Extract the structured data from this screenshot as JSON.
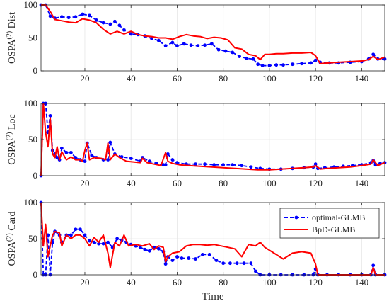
{
  "chart_data": [
    {
      "type": "line",
      "ylabel": "OSPA(2) Dist",
      "ylabel_main": "OSPA",
      "ylabel_sup": "(2)",
      "ylabel_rest": " Dist",
      "xlabel": "",
      "xlim": [
        1,
        150
      ],
      "ylim": [
        0,
        100
      ],
      "xticks": [
        20,
        40,
        60,
        80,
        100,
        120,
        140
      ],
      "yticks": [
        0,
        50,
        100
      ],
      "grid": true,
      "series": [
        {
          "name": "optimal-GLMB",
          "color": "#0000ff",
          "style": "dashed-markers",
          "x": [
            1,
            3,
            5,
            7,
            10,
            13,
            16,
            19,
            22,
            25,
            28,
            31,
            33,
            35,
            37,
            40,
            43,
            46,
            49,
            52,
            55,
            58,
            60,
            63,
            66,
            69,
            72,
            75,
            78,
            81,
            84,
            87,
            90,
            93,
            95,
            97,
            100,
            103,
            106,
            110,
            114,
            118,
            120,
            122,
            126,
            130,
            135,
            140,
            143,
            145,
            147,
            150
          ],
          "y": [
            100,
            100,
            83,
            80,
            82,
            81,
            82,
            86,
            84,
            77,
            73,
            71,
            75,
            69,
            62,
            56,
            55,
            53,
            49,
            46,
            38,
            43,
            38,
            41,
            39,
            38,
            39,
            41,
            32,
            30,
            28,
            22,
            19,
            18,
            10,
            8,
            8,
            9,
            9,
            10,
            11,
            12,
            16,
            13,
            12,
            12,
            13,
            14,
            18,
            25,
            18,
            18
          ]
        },
        {
          "name": "BpD-GLMB",
          "color": "#ff0000",
          "style": "solid",
          "x": [
            1,
            3,
            5,
            7,
            10,
            13,
            16,
            19,
            22,
            25,
            28,
            31,
            34,
            37,
            40,
            43,
            46,
            49,
            52,
            55,
            58,
            61,
            64,
            67,
            70,
            73,
            76,
            79,
            82,
            85,
            88,
            91,
            94,
            96,
            98,
            100,
            103,
            106,
            110,
            114,
            118,
            120,
            122,
            126,
            130,
            135,
            140,
            143,
            145,
            147,
            150
          ],
          "y": [
            100,
            100,
            90,
            78,
            76,
            74,
            73,
            79,
            77,
            73,
            63,
            56,
            60,
            56,
            60,
            55,
            53,
            52,
            50,
            50,
            48,
            52,
            55,
            53,
            52,
            49,
            51,
            50,
            47,
            35,
            33,
            25,
            23,
            17,
            25,
            25,
            26,
            26,
            27,
            27,
            28,
            23,
            11,
            12,
            13,
            14,
            15,
            17,
            22,
            17,
            21
          ]
        }
      ]
    },
    {
      "type": "line",
      "ylabel": "OSPA(2) Loc",
      "ylabel_main": "OSPA",
      "ylabel_sup": "(2)",
      "ylabel_rest": " Loc",
      "xlabel": "",
      "xlim": [
        1,
        150
      ],
      "ylim": [
        0,
        100
      ],
      "xticks": [
        20,
        40,
        60,
        80,
        100,
        120,
        140
      ],
      "yticks": [
        0,
        50,
        100
      ],
      "grid": true,
      "series": [
        {
          "name": "optimal-GLMB",
          "color": "#0000ff",
          "style": "dashed-markers",
          "x": [
            1,
            2,
            3,
            4,
            5,
            6,
            7,
            8,
            9,
            10,
            12,
            14,
            16,
            18,
            20,
            21,
            23,
            25,
            28,
            30,
            31,
            33,
            36,
            40,
            44,
            45,
            48,
            51,
            54,
            55,
            56,
            58,
            60,
            64,
            68,
            72,
            76,
            80,
            84,
            88,
            92,
            96,
            100,
            105,
            110,
            115,
            119,
            120,
            121,
            124,
            128,
            132,
            136,
            140,
            144,
            145,
            146,
            148,
            150
          ],
          "y": [
            0,
            100,
            100,
            60,
            83,
            35,
            30,
            25,
            22,
            38,
            32,
            32,
            25,
            22,
            20,
            45,
            28,
            25,
            22,
            22,
            46,
            30,
            26,
            24,
            20,
            25,
            20,
            17,
            15,
            15,
            30,
            22,
            18,
            16,
            16,
            16,
            15,
            15,
            15,
            14,
            12,
            10,
            9,
            9,
            10,
            11,
            12,
            16,
            10,
            11,
            12,
            13,
            14,
            15,
            18,
            21,
            15,
            17,
            18
          ]
        },
        {
          "name": "BpD-GLMB",
          "color": "#ff0000",
          "style": "solid",
          "x": [
            1,
            2,
            3,
            4,
            5,
            6,
            7,
            8,
            9,
            10,
            12,
            14,
            16,
            18,
            19,
            20,
            21,
            22,
            24,
            27,
            29,
            30,
            31,
            33,
            35,
            38,
            41,
            44,
            45,
            47,
            50,
            53,
            55,
            56,
            58,
            61,
            65,
            70,
            75,
            80,
            85,
            90,
            95,
            100,
            105,
            110,
            115,
            119,
            120,
            122,
            125,
            130,
            135,
            140,
            144,
            145,
            147,
            150
          ],
          "y": [
            0,
            100,
            60,
            40,
            80,
            30,
            25,
            40,
            22,
            33,
            22,
            26,
            22,
            22,
            20,
            35,
            45,
            22,
            25,
            24,
            22,
            45,
            22,
            30,
            25,
            20,
            19,
            18,
            24,
            18,
            16,
            14,
            32,
            20,
            17,
            15,
            14,
            13,
            12,
            11,
            10,
            9,
            8,
            8,
            9,
            10,
            11,
            12,
            14,
            9,
            10,
            11,
            12,
            14,
            16,
            22,
            14,
            18
          ]
        }
      ]
    },
    {
      "type": "line",
      "ylabel": "OSPA(2) Card",
      "ylabel_main": "OSPA",
      "ylabel_sup": "(2)",
      "ylabel_rest": " Card",
      "xlabel": "Time",
      "xlim": [
        1,
        150
      ],
      "ylim": [
        0,
        100
      ],
      "xticks": [
        20,
        40,
        60,
        80,
        100,
        120,
        140
      ],
      "yticks": [
        0,
        50,
        100
      ],
      "grid": true,
      "legend_position": "top-right",
      "series": [
        {
          "name": "optimal-GLMB",
          "color": "#0000ff",
          "style": "dashed-markers",
          "x": [
            1,
            2,
            3,
            4,
            5,
            6,
            7,
            9,
            10,
            12,
            14,
            16,
            18,
            20,
            22,
            24,
            26,
            28,
            30,
            32,
            34,
            36,
            38,
            40,
            42,
            44,
            46,
            48,
            50,
            52,
            54,
            55,
            56,
            58,
            60,
            62,
            65,
            68,
            71,
            74,
            77,
            80,
            83,
            86,
            89,
            92,
            94,
            96,
            100,
            105,
            110,
            115,
            119,
            120,
            121,
            125,
            130,
            135,
            140,
            144,
            145,
            146,
            150
          ],
          "y": [
            100,
            0,
            0,
            55,
            0,
            45,
            60,
            55,
            45,
            55,
            55,
            63,
            63,
            55,
            47,
            45,
            43,
            43,
            45,
            38,
            50,
            48,
            45,
            42,
            40,
            38,
            35,
            33,
            38,
            36,
            32,
            15,
            25,
            20,
            25,
            23,
            23,
            22,
            28,
            28,
            20,
            16,
            16,
            16,
            16,
            16,
            5,
            0,
            0,
            0,
            0,
            0,
            0,
            8,
            0,
            0,
            0,
            0,
            0,
            0,
            13,
            0,
            0
          ]
        },
        {
          "name": "BpD-GLMB",
          "color": "#ff0000",
          "style": "solid",
          "x": [
            1,
            2,
            3,
            4,
            5,
            6,
            7,
            9,
            10,
            12,
            14,
            16,
            18,
            20,
            22,
            24,
            26,
            28,
            30,
            31,
            33,
            35,
            37,
            39,
            42,
            45,
            48,
            50,
            52,
            54,
            55,
            56,
            58,
            61,
            64,
            67,
            70,
            73,
            76,
            79,
            82,
            85,
            88,
            91,
            94,
            96,
            98,
            102,
            106,
            110,
            114,
            118,
            120,
            121,
            124,
            128,
            132,
            136,
            140,
            144,
            145,
            146,
            150
          ],
          "y": [
            100,
            40,
            70,
            25,
            40,
            55,
            60,
            58,
            40,
            55,
            50,
            55,
            55,
            50,
            40,
            52,
            45,
            55,
            30,
            10,
            45,
            40,
            55,
            40,
            42,
            40,
            43,
            35,
            40,
            38,
            18,
            25,
            30,
            32,
            40,
            42,
            42,
            41,
            42,
            40,
            38,
            36,
            25,
            42,
            40,
            45,
            38,
            30,
            22,
            30,
            32,
            30,
            15,
            0,
            0,
            0,
            0,
            0,
            0,
            0,
            10,
            0,
            0
          ]
        }
      ]
    }
  ]
}
